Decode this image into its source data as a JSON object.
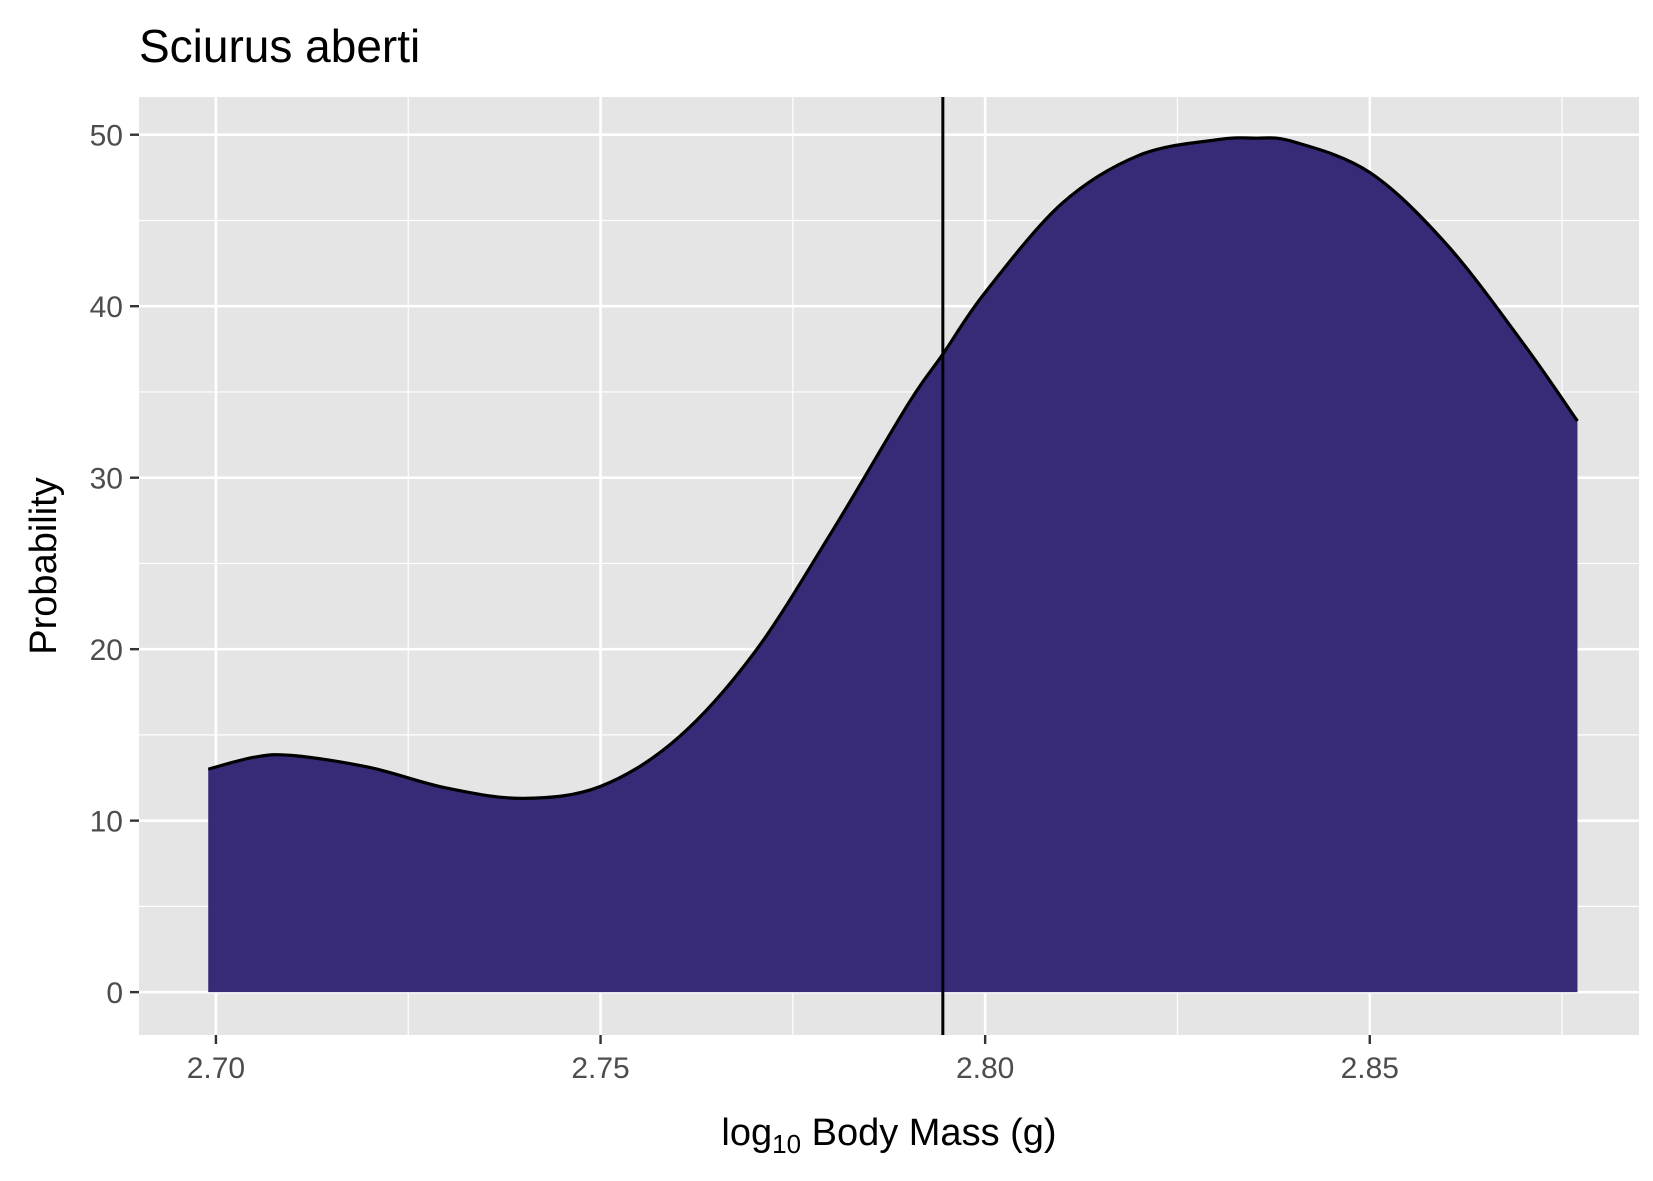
{
  "chart_data": {
    "type": "area",
    "title": "Sciurus aberti",
    "xlabel": {
      "base": "log",
      "subscript": "10",
      "rest": " Body Mass (g)"
    },
    "ylabel": "Probability",
    "xlim": [
      2.69,
      2.885
    ],
    "ylim": [
      -2.5,
      52.2
    ],
    "x_ticks": [
      2.7,
      2.75,
      2.8,
      2.85
    ],
    "x_tick_labels": [
      "2.70",
      "2.75",
      "2.80",
      "2.85"
    ],
    "y_ticks": [
      0,
      10,
      20,
      30,
      40,
      50
    ],
    "y_tick_labels": [
      "0",
      "10",
      "20",
      "30",
      "40",
      "50"
    ],
    "grid": true,
    "legend": "none",
    "vline_x": 2.7945,
    "series": [
      {
        "color": "#372A77",
        "x": [
          2.699,
          2.705,
          2.71,
          2.72,
          2.73,
          2.74,
          2.75,
          2.76,
          2.77,
          2.78,
          2.79,
          2.7945,
          2.8,
          2.81,
          2.82,
          2.83,
          2.835,
          2.84,
          2.85,
          2.86,
          2.87,
          2.877
        ],
        "y": [
          13.0,
          13.7,
          13.8,
          13.1,
          11.9,
          11.3,
          12.0,
          14.8,
          19.8,
          26.8,
          34.3,
          37.2,
          40.8,
          46.0,
          48.8,
          49.7,
          49.8,
          49.6,
          47.8,
          43.6,
          37.8,
          33.3
        ]
      }
    ],
    "colors": {
      "panel_background": "#E5E5E5",
      "grid": "#FFFFFF",
      "fill": "#372A77",
      "outline": "#000000"
    }
  }
}
